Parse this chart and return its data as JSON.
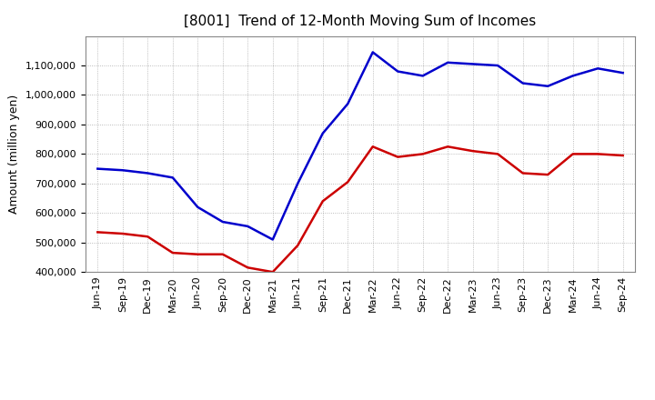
{
  "title": "[8001]  Trend of 12-Month Moving Sum of Incomes",
  "ylabel": "Amount (million yen)",
  "x_labels": [
    "Jun-19",
    "Sep-19",
    "Dec-19",
    "Mar-20",
    "Jun-20",
    "Sep-20",
    "Dec-20",
    "Mar-21",
    "Jun-21",
    "Sep-21",
    "Dec-21",
    "Mar-22",
    "Jun-22",
    "Sep-22",
    "Dec-22",
    "Mar-23",
    "Jun-23",
    "Sep-23",
    "Dec-23",
    "Mar-24",
    "Jun-24",
    "Sep-24"
  ],
  "ordinary_income": [
    750000,
    745000,
    735000,
    720000,
    620000,
    570000,
    555000,
    510000,
    700000,
    870000,
    970000,
    1145000,
    1080000,
    1065000,
    1110000,
    1105000,
    1100000,
    1040000,
    1030000,
    1065000,
    1090000,
    1075000
  ],
  "net_income": [
    535000,
    530000,
    520000,
    465000,
    460000,
    460000,
    415000,
    400000,
    490000,
    640000,
    705000,
    825000,
    790000,
    800000,
    825000,
    810000,
    800000,
    735000,
    730000,
    800000,
    800000,
    795000
  ],
  "ordinary_color": "#0000cc",
  "net_color": "#cc0000",
  "ylim": [
    400000,
    1200000
  ],
  "yticks": [
    400000,
    500000,
    600000,
    700000,
    800000,
    900000,
    1000000,
    1100000
  ],
  "background_color": "#ffffff",
  "grid_color": "#aaaaaa",
  "title_fontsize": 11,
  "axis_fontsize": 8,
  "legend_fontsize": 9,
  "line_width": 1.8
}
